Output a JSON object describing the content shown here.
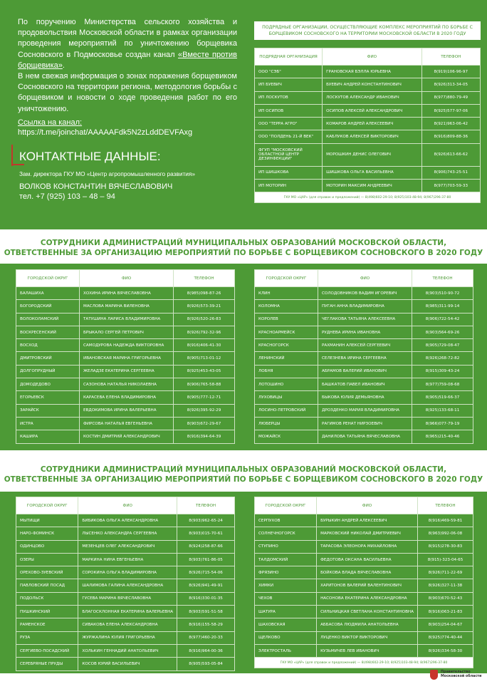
{
  "intro": {
    "paragraph1_start": "По поручению Министерства сельского хозяйства и продовольствия Московской области в рамках организации проведения мероприятий по уничтожению борщевика Сосновского в Подмосковье создан канал ",
    "channel_name": "«Вместе против борщевика»",
    "paragraph1_end": ".",
    "paragraph2": "В нем свежая информация о зонах поражения борщевиком Сосновского на территории региона, методология борьбы с борщевиком и новости о ходе проведения работ по его уничтожению.",
    "link_label": "Ссылка на канал:",
    "link_url": "https://t.me/joinchat/AAAAAFdk5N2zLddDEVFAxg"
  },
  "contacts": {
    "title": "КОНТАКТНЫЕ ДАННЫЕ:",
    "role": "Зам. директора ГКУ МО «Центр агропромышленного развития»",
    "name": "ВОЛКОВ КОНСТАНТИН ВЯЧЕСЛАВОВИЧ",
    "phone": "тел. +7 (925) 103 – 48 – 94"
  },
  "contractors": {
    "title": "ПОДРЯДНЫЕ ОРГАНИЗАЦИИ, ОСУЩЕСТВЛЯЮЩИЕ КОМПЛЕКС МЕРОПРИЯТИЙ ПО БОРЬБЕ С БОРЩЕВИКОМ СОСНОВСКОГО НА ТЕРРИТОРИИ МОСКОВСКОЙ ОБЛАСТИ В 2020 ГОДУ",
    "headers": [
      "ПОДРЯДНАЯ ОРГАНИЗАЦИЯ",
      "ФИО",
      "ТЕЛЕФОН"
    ],
    "rows": [
      [
        "ООО \"СЭБ\"",
        "ГРАНОВСКАЯ БЭЛЛА ЮРЬЕВНА",
        "8(919)106-96-97"
      ],
      [
        "ИП БУЕВИЧ",
        "БУЕВИЧ АНДРЕЙ КОНСТАНТИНОВИЧ",
        "8(926)313-34-05"
      ],
      [
        "ИП ЛОСКУТОВ",
        "ЛОСКУТОВ АЛЕКСАНДР ИВАНОВИЧ",
        "8(977)880-79-49"
      ],
      [
        "ИП ОСИПОВ",
        "ОСИПОВ АЛЕКСЕЙ АЛЕКСАНДРОВИЧ",
        "8(925)577-97-06"
      ],
      [
        "ООО \"ТЕРРА АГРО\"",
        "КОМАРОВ АНДРЕЙ АЛЕКСЕЕВИЧ",
        "8(921)963-06-42"
      ],
      [
        "ООО \"ПОЛДЕНЬ 21-Й ВЕК\"",
        "КАБЛУКОВ АЛЕКСЕЙ ВИКТОРОВИЧ",
        "8(916)809-88-36"
      ],
      [
        "ФГУП \"МОСКОВСКИЙ ОБЛАСТНОЙ ЦЕНТР ДЕЗИНФЕКЦИИ\"",
        "МОРОШКИН ДЕНИС ОЛЕГОВИЧ",
        "8(926)613-66-62"
      ],
      [
        "ИП ШИШКОВА",
        "ШИШКОВА ОЛЬГА ВАСИЛЬЕВНА",
        "8(906)743-25-51"
      ],
      [
        "ИП МОТОРИН",
        "МОТОРИН МАКСИМ АНДРЕЕВИЧ",
        "8(977)703-59-33"
      ]
    ],
    "footer": "ГКУ МО «ЦАР» (для справок и предложений) — 8(498)602-29-10; 8(925)103-48-94; 8(967)296-37-80"
  },
  "section_title": "СОТРУДНИКИ АДМИНИСТРАЦИЙ МУНИЦИПАЛЬНЫХ ОБРАЗОВАНИЙ МОСКОВСКОЙ ОБЛАСТИ,",
  "section_title2": "ОТВЕТСТВЕННЫЕ ЗА ОРГАНИЗАЦИЮ МЕРОПРИЯТИЙ ПО БОРЬБЕ С БОРЩЕВИКОМ СОСНОВСКОГО В 2020 ГОДУ",
  "muni_headers": [
    "ГОРОДСКОЙ ОКРУГ",
    "ФИО",
    "ТЕЛЕФОН"
  ],
  "tables": {
    "t1": [
      [
        "БАЛАШИХА",
        "ХОХИНА ИРИНА ВЯЧЕСЛАВОВНА",
        "8(985)098-87-26"
      ],
      [
        "БОГОРОДСКИЙ",
        "МАСЛОВА МАРИНА ВИЛЕНОВНА",
        "8(926)573-39-21"
      ],
      [
        "ВОЛОКОЛАМСКИЙ",
        "ТАТУШИНА ЛАРИСА ВЛАДИМИРОВНА",
        "8(926)520-26-83"
      ],
      [
        "ВОСКРЕСЕНСКИЙ",
        "БРЫКАЛО СЕРГЕЙ ПЕТРОВИЧ",
        "8(926)792-32-96"
      ],
      [
        "ВОСХОД",
        "САМОДУРОВА НАДЕЖДА ВИКТОРОВНА",
        "8(916)406-41-30"
      ],
      [
        "ДМИТРОВСКИЙ",
        "ИВАНОВСКАЯ МАРИНА ГРИГОРЬЕВНА",
        "8(905)713-01-12"
      ],
      [
        "ДОЛГОПРУДНЫЙ",
        "ЖЕЛАДЗЕ ЕКАТЕРИНА СЕРГЕЕВНА",
        "8(925)453-43-05"
      ],
      [
        "ДОМОДЕДОВО",
        "САЗОНОВА НАТАЛЬЯ НИКОЛАЕВНА",
        "8(906)765-58-88"
      ],
      [
        "ЕГОРЬЕВСК",
        "КАРАСЕВА ЕЛЕНА ВЛАДИМИРОВНА",
        "8(905)777-12-71"
      ],
      [
        "ЗАРАЙСК",
        "ЕВДОКИМОВА ИРИНА ВАЛЕРЬЕВНА",
        "8(926)395-92-29"
      ],
      [
        "ИСТРА",
        "ФИРСОВА НАТАЛЬЯ ЕВГЕНЬЕВНА",
        "8(903)672-29-67"
      ],
      [
        "КАШИРА",
        "КОСТИН ДМИТРИЙ АЛЕКСАНДРОВИЧ",
        "8(916)394-64-39"
      ]
    ],
    "t2": [
      [
        "КЛИН",
        "СОЛОДОВНИКОВ ВАДИМ ИГОРЕВИЧ",
        "8(903)510-90-72"
      ],
      [
        "КОЛОМНА",
        "ПУГАН АННА ВЛАДИМИРОВНА",
        "8(985)311-99-14"
      ],
      [
        "КОРОЛЕВ",
        "ЧЕГЛАКОВА ТАТЬЯНА АЛЕКСЕЕВНА",
        "8(906)722-54-42"
      ],
      [
        "КРАСНОАРМЕЙСК",
        "РУДНЕВА ИРИНА ИВАНОВНА",
        "8(903)564-69-26"
      ],
      [
        "КРАСНОГОРСК",
        "РАХМАНИН АЛЕКСЕЙ СЕРГЕЕВИЧ",
        "8(905)729-08-47"
      ],
      [
        "ЛЕНИНСКИЙ",
        "СЕЛЕЗНЕВА ИРИНА СЕРГЕЕВНА",
        "8(926)268-72-82"
      ],
      [
        "ЛОБНЯ",
        "АБРАМОВ ВАЛЕРИЙ ИВАНОВИЧ",
        "8(915)309-43-24"
      ],
      [
        "ЛОТОШИНО",
        "БАШКАТОВ ПАВЕЛ ИВАНОВИЧ",
        "8(977)759-08-68"
      ],
      [
        "ЛУХОВИЦЫ",
        "БЫКОВА ЮЛИЯ ДЕМЬЯНОВНА",
        "8(905)519-66-37"
      ],
      [
        "ЛОСИНО-ПЕТРОВСКИЙ",
        "ДРОЗДЕНКО МАРИЯ ВЛАДИМИРОВНА",
        "8(925)133-68-11"
      ],
      [
        "ЛЮБЕРЦЫ",
        "РАГИМОВ РЕНАТ НИРЗОЕВИЧ",
        "8(966)077-79-19"
      ],
      [
        "МОЖАЙСК",
        "ДАНИЛОВА ТАТЬЯНА ВЯЧЕСЛАВОВНА",
        "8(965)215-40-46"
      ]
    ],
    "t3": [
      [
        "МЫТИЩИ",
        "БИБИКОВА ОЛЬГА АЛЕКСАНДРОВНА",
        "8(903)962-65-24"
      ],
      [
        "НАРО-ФОМИНСК",
        "ЛЫСЕНКО АЛЕКСАНДРА СЕРГЕЕВНА",
        "8(903)015-70-61"
      ],
      [
        "ОДИНЦОВО",
        "МЕЗЕНЦЕВ ОЛЕГ АЛЕКСАНДРОВИЧ",
        "8(924)258-87-66"
      ],
      [
        "ОЗЕРЫ",
        "МАРКИНА НИНА ЕВГЕНЬЕВНА",
        "8(903)761-86-05"
      ],
      [
        "ОРЕХОВО-ЗУЕВСКИЙ",
        "СОРОКИНА ОЛЬГА ВЛАДИМИРОВНА",
        "8(926)715-54-06"
      ],
      [
        "ПАВЛОВСКИЙ ПОСАД",
        "ШАЛИМОВА ГАЛИНА АЛЕКСАНДРОВНА",
        "8(926)941-49-91"
      ],
      [
        "ПОДОЛЬСК",
        "ГУСЕВА МАРИНА ВЯЧЕСЛАВОВНА",
        "8(916)330-01-35"
      ],
      [
        "ПУШКИНСКИЙ",
        "БЛАГОСКЛОННАЯ ЕКАТЕРИНА ВАЛЕРЬЕВНА",
        "8(903)591-51-58"
      ],
      [
        "РАМЕНСКОЕ",
        "СИВАКОВА ЕЛЕНА АЛЕКСАНДРОВНА",
        "8(916)155-58-29"
      ],
      [
        "РУЗА",
        "ЖУРЖАЛИНА ЮЛИЯ ГРИГОРЬЕВНА",
        "8(977)460-20-33"
      ],
      [
        "СЕРГИЕВО-ПОСАДСКИЙ",
        "ХОЛЬКИН ГЕННАДИЙ АНАТОЛЬЕВИЧ",
        "8(916)964-00-36"
      ],
      [
        "СЕРЕБРЯНЫЕ ПРУДЫ",
        "КОСОВ ЮРИЙ ВАСИЛЬЕВИЧ",
        "8(905)593-05-84"
      ]
    ],
    "t4": [
      [
        "СЕРПУХОВ",
        "БУРЫКИН АНДРЕЙ АЛЕКСЕЕВИЧ",
        "8(916)469-59-81"
      ],
      [
        "СОЛНЕЧНОГОРСК",
        "МАРКОВСКИЙ НИКОЛАЙ ДМИТРИЕВИЧ",
        "8(963)992-06-08"
      ],
      [
        "СТУПИНО",
        "ТАРАСОВА ЭЛЕОНОРА МИХАЙЛОВНА",
        "8(915)278-30-83"
      ],
      [
        "ТАЛДОМСКИЙ",
        "ФЕДОТОВА ОКСАНА ВАСИЛЬЕВНА",
        "8(915)-323-04-65"
      ],
      [
        "ФРЯЗИНО",
        "БОЙКОВА ВЛАДА ВЯЧЕСЛАВОВНА",
        "8(926)711-22-69"
      ],
      [
        "ХИМКИ",
        "ХАРИТОНОВ ВАЛЕРИЙ ВАЛЕНТИНОВИЧ",
        "8(926)327-11-38"
      ],
      [
        "ЧЕХОВ",
        "НАСОНОВА ЕКАТЕРИНА АЛЕКСАНДРОВНА",
        "8(903)670-52-43"
      ],
      [
        "ШАТУРА",
        "СИЛЬНИЦКАЯ СВЕТЛАНА КОНСТАНТИНОВНА",
        "8(916)063-21-83"
      ],
      [
        "ШАХОВСКАЯ",
        "АББАСОВА ЛЮДМИЛА АНАТОЛЬЕВНА",
        "8(903)254-04-67"
      ],
      [
        "ЩЕЛКОВО",
        "ЛУЦЕНКО ВИКТОР ВИКТОРОВИЧ",
        "8(925)774-40-44"
      ],
      [
        "ЭЛЕКТРОСТАЛЬ",
        "КУЗЬМИЧЕВ ЛЕВ ИВАНОВИЧ",
        "8(926)334-58-30"
      ]
    ],
    "t4_footer": "ГКУ МО «ЦАР» (для справок и предложений) — 8(498)602-29-10; 8(925)103-48-94; 8(967)296-37-80"
  },
  "logo": {
    "line1": "Правительство",
    "line2": "Московской области"
  },
  "colors": {
    "green": "#4d9a36",
    "white": "#ffffff"
  }
}
